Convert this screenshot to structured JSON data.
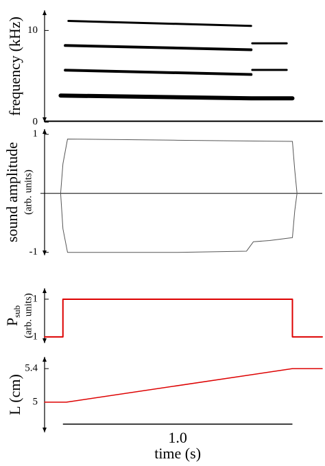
{
  "chart_data": [
    {
      "type": "line",
      "ylabel": "frequency (kHz)",
      "ylim": [
        0,
        12.2
      ],
      "yticks": [
        0,
        10
      ],
      "xlim": [
        -0.08,
        1.13
      ],
      "series": [
        {
          "color": "#000000",
          "x": [
            0.024,
            0.82
          ],
          "values": [
            11.04,
            10.5
          ]
        },
        {
          "color": "#000000",
          "x": [
            0.01,
            0.82
          ],
          "values": [
            8.36,
            7.9
          ]
        },
        {
          "color": "#000000",
          "x": [
            0.825,
            0.975
          ],
          "values": [
            8.6,
            8.6
          ]
        },
        {
          "color": "#000000",
          "x": [
            0.01,
            0.82
          ],
          "values": [
            5.67,
            5.2
          ]
        },
        {
          "color": "#000000",
          "x": [
            0.825,
            0.975
          ],
          "values": [
            5.7,
            5.7
          ]
        },
        {
          "color": "#000000",
          "x": [
            -0.01,
            0.82,
            1.0
          ],
          "values": [
            2.9,
            2.6,
            2.6
          ]
        },
        {
          "color": "#000000",
          "x": [
            -0.08,
            1.13
          ],
          "values": [
            0.1,
            0.1
          ]
        }
      ]
    },
    {
      "type": "line",
      "ylabel": "sound amplitude",
      "ylabel2": "(arb. units)",
      "ylim": [
        -1.05,
        1.09
      ],
      "yticks": [
        -1,
        1
      ],
      "xlim": [
        -0.08,
        1.13
      ],
      "zero_line": true,
      "series": [
        {
          "color": "#555555",
          "x": [
            -0.01,
            0.0,
            0.02,
            0.5,
            1.0,
            1.01,
            1.02
          ],
          "values": [
            0,
            0.5,
            0.92,
            0.9,
            0.88,
            0.4,
            0
          ]
        },
        {
          "color": "#555555",
          "x": [
            -0.01,
            0.0,
            0.02,
            0.5,
            0.8,
            0.83,
            0.9,
            1.0,
            1.01,
            1.02
          ],
          "values": [
            0,
            -0.6,
            -1.0,
            -1.0,
            -0.98,
            -0.82,
            -0.8,
            -0.75,
            -0.3,
            0
          ]
        }
      ]
    },
    {
      "type": "line",
      "ylabel": "P",
      "ylabel_sub": "sub",
      "ylabel2": "(arb. units)",
      "ylim": [
        -1.33,
        1.58
      ],
      "yticks": [
        -1,
        1
      ],
      "xlim": [
        -0.08,
        1.13
      ],
      "series": [
        {
          "color": "#dd0000",
          "x": [
            -0.08,
            0,
            0,
            1.0,
            1.0,
            1.13
          ],
          "values": [
            -1,
            -1,
            1,
            1,
            -1,
            -1
          ]
        }
      ]
    },
    {
      "type": "line",
      "ylabel": "L (cm)",
      "ylim": [
        4.64,
        5.54
      ],
      "yticks": [
        5,
        5.4
      ],
      "xlim": [
        -0.08,
        1.13
      ],
      "series": [
        {
          "color": "#dd0000",
          "x": [
            -0.08,
            0.015,
            1.0,
            1.13
          ],
          "values": [
            5,
            5,
            5.4,
            5.4
          ]
        }
      ],
      "scalebar": {
        "value": 1,
        "label": "1.0"
      },
      "xlabel": "time (s)"
    }
  ]
}
